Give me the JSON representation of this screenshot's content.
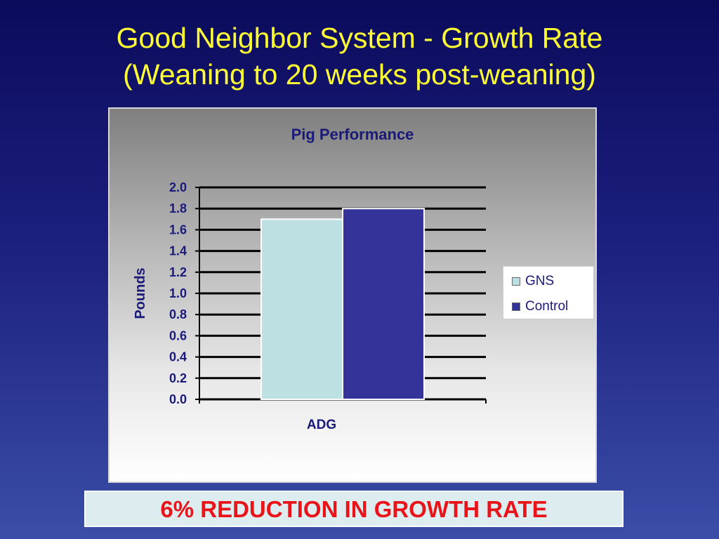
{
  "slide": {
    "title_line1": "Good Neighbor System - Growth Rate",
    "title_line2": "(Weaning to 20 weeks post-weaning)",
    "callout": "6% REDUCTION IN GROWTH RATE"
  },
  "colors": {
    "title": "#ffff33",
    "callout_text": "#e8141a",
    "callout_bg": "#ddecef",
    "chart_text": "#1a1a7a"
  },
  "chart_data": {
    "type": "bar",
    "title": "Pig Performance",
    "categories": [
      "ADG"
    ],
    "series": [
      {
        "name": "GNS",
        "values": [
          1.7
        ],
        "color": "#bde0e3"
      },
      {
        "name": "Control",
        "values": [
          1.8
        ],
        "color": "#333399"
      }
    ],
    "xlabel": "ADG",
    "ylabel": "Pounds",
    "ylim": [
      0,
      2.0
    ],
    "yticks": [
      "0.0",
      "0.2",
      "0.4",
      "0.6",
      "0.8",
      "1.0",
      "1.2",
      "1.4",
      "1.6",
      "1.8",
      "2.0"
    ],
    "grid": true,
    "legend_position": "right"
  }
}
